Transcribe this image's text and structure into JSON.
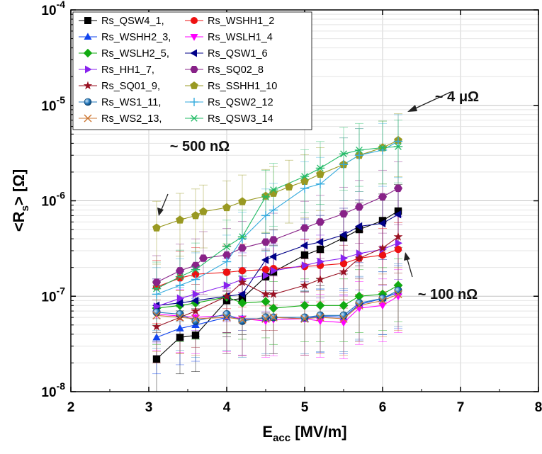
{
  "chart_data": {
    "type": "scatter",
    "xlabel": "E",
    "xlabel_sub": "acc",
    "xlabel_unit": " [MV/m]",
    "ylabel_pre": "<R",
    "ylabel_sub": "s",
    "ylabel_post": "> [Ω]",
    "xlim": [
      2,
      8
    ],
    "ylim": [
      1e-08,
      0.0001
    ],
    "yscale": "log",
    "grid": true,
    "legend_position": "top-left",
    "x_ticks": [
      "2",
      "3",
      "4",
      "5",
      "6",
      "7",
      "8"
    ],
    "y_ticks": [
      {
        "base": "10",
        "exp": "-8"
      },
      {
        "base": "10",
        "exp": "-7"
      },
      {
        "base": "10",
        "exp": "-6"
      },
      {
        "base": "10",
        "exp": "-5"
      },
      {
        "base": "10",
        "exp": "-4"
      }
    ],
    "annotations": [
      {
        "text": "~ 4 μΩ"
      },
      {
        "text": "~ 500 nΩ"
      },
      {
        "text": "~ 100 nΩ"
      }
    ],
    "series": [
      {
        "name": "Rs_QSW4_1,",
        "color": "#000000",
        "marker": "square",
        "x": [
          3.1,
          3.4,
          3.6,
          4.0,
          4.2,
          4.5,
          4.6,
          5.0,
          5.2,
          5.5,
          5.7,
          6.0,
          6.2
        ],
        "y": [
          2.2e-08,
          3.7e-08,
          3.9e-08,
          9e-08,
          9.5e-08,
          1.6e-07,
          1.8e-07,
          2.7e-07,
          3.1e-07,
          4.1e-07,
          5e-07,
          6.2e-07,
          7.8e-07
        ]
      },
      {
        "name": "Rs_WSHH1_2",
        "color": "#ee1111",
        "marker": "circle",
        "x": [
          3.1,
          3.4,
          3.6,
          4.0,
          4.2,
          4.5,
          4.6,
          5.0,
          5.2,
          5.5,
          5.7,
          6.0,
          6.2
        ],
        "y": [
          1.25e-07,
          1.55e-07,
          1.7e-07,
          1.78e-07,
          1.85e-07,
          1.9e-07,
          1.95e-07,
          2.05e-07,
          2.1e-07,
          2.2e-07,
          2.5e-07,
          2.7e-07,
          3.1e-07
        ]
      },
      {
        "name": "Rs_WSHH2_3,",
        "color": "#1144ee",
        "marker": "triangle-up",
        "x": [
          3.1,
          3.4,
          3.6,
          4.0,
          4.2,
          4.5,
          4.6,
          5.0,
          5.2,
          5.5,
          5.7,
          6.0,
          6.2
        ],
        "y": [
          3.7e-08,
          4.6e-08,
          5e-08,
          6e-08,
          5.8e-08,
          5.8e-08,
          6e-08,
          5.8e-08,
          6.2e-08,
          6e-08,
          8.2e-08,
          9.5e-08,
          1.1e-07
        ]
      },
      {
        "name": "Rs_WSLH1_4",
        "color": "#ff00ff",
        "marker": "triangle-down",
        "x": [
          3.1,
          3.4,
          3.6,
          4.0,
          4.2,
          4.5,
          4.6,
          5.0,
          5.2,
          5.5,
          5.7,
          6.0,
          6.2
        ],
        "y": [
          6.5e-08,
          6.2e-08,
          6e-08,
          6.3e-08,
          5.8e-08,
          5.5e-08,
          5.7e-08,
          5.8e-08,
          5.5e-08,
          5.3e-08,
          7.5e-08,
          8e-08,
          1e-07
        ]
      },
      {
        "name": "Rs_WSLH2_5,",
        "color": "#11aa11",
        "marker": "diamond",
        "x": [
          3.1,
          3.4,
          3.6,
          4.0,
          4.2,
          4.5,
          4.6,
          5.0,
          5.2,
          5.5,
          5.7,
          6.0,
          6.2
        ],
        "y": [
          7.5e-08,
          8e-08,
          8.5e-08,
          9.8e-08,
          8.5e-08,
          8.8e-08,
          7.5e-08,
          8e-08,
          8e-08,
          8e-08,
          1e-07,
          1.05e-07,
          1.3e-07
        ]
      },
      {
        "name": "Rs_QSW1_6",
        "color": "#000088",
        "marker": "triangle-left",
        "x": [
          3.1,
          3.4,
          3.6,
          4.0,
          4.2,
          4.5,
          4.6,
          5.0,
          5.2,
          5.5,
          5.7,
          6.0,
          6.2
        ],
        "y": [
          8e-08,
          8.5e-08,
          9e-08,
          1e-07,
          1.05e-07,
          2.4e-07,
          2.6e-07,
          3.4e-07,
          3.7e-07,
          4.4e-07,
          5.4e-07,
          5.8e-07,
          7.2e-07
        ]
      },
      {
        "name": "Rs_HH1_7,",
        "color": "#8822ee",
        "marker": "triangle-right",
        "x": [
          3.1,
          3.4,
          3.6,
          4.0,
          4.2,
          4.5,
          4.6,
          5.0,
          5.2,
          5.5,
          5.7,
          6.0,
          6.2
        ],
        "y": [
          7.8e-08,
          9.5e-08,
          1.05e-07,
          1.3e-07,
          1.5e-07,
          1.65e-07,
          1.85e-07,
          2.1e-07,
          2.3e-07,
          2.5e-07,
          2.8e-07,
          3.1e-07,
          3.6e-07
        ]
      },
      {
        "name": "Rs_SQ02_8",
        "color": "#882288",
        "marker": "hexagon",
        "x": [
          3.1,
          3.4,
          3.6,
          3.7,
          4.0,
          4.2,
          4.5,
          4.6,
          5.0,
          5.2,
          5.5,
          5.7,
          6.0,
          6.2
        ],
        "y": [
          1.4e-07,
          1.85e-07,
          2.1e-07,
          2.5e-07,
          2.7e-07,
          3.2e-07,
          3.7e-07,
          3.9e-07,
          5.2e-07,
          6e-07,
          7.3e-07,
          8.6e-07,
          1.1e-06,
          1.35e-06
        ]
      },
      {
        "name": "Rs_SQ01_9,",
        "color": "#991122",
        "marker": "star",
        "x": [
          3.1,
          3.4,
          3.6,
          4.0,
          4.2,
          4.5,
          4.6,
          5.0,
          5.2,
          5.5,
          5.7,
          6.0,
          6.2
        ],
        "y": [
          4.8e-08,
          6e-08,
          7e-08,
          1e-07,
          1.4e-07,
          1.05e-07,
          1.05e-07,
          1.3e-07,
          1.5e-07,
          1.8e-07,
          2.5e-07,
          3.2e-07,
          4.2e-07
        ]
      },
      {
        "name": "Rs_SSHH1_10",
        "color": "#999922",
        "marker": "pentagon",
        "x": [
          3.1,
          3.4,
          3.6,
          3.7,
          4.0,
          4.2,
          4.5,
          4.6,
          4.8,
          5.0,
          5.2,
          5.5,
          5.7,
          6.0,
          6.2
        ],
        "y": [
          5.2e-07,
          6.3e-07,
          7e-07,
          7.7e-07,
          8.5e-07,
          9.8e-07,
          1.12e-06,
          1.2e-06,
          1.4e-06,
          1.6e-06,
          1.9e-06,
          2.4e-06,
          3e-06,
          3.6e-06,
          4.3e-06
        ]
      },
      {
        "name": "Rs_WS1_11,",
        "color": "#2277bb",
        "marker": "sphere",
        "x": [
          3.1,
          3.4,
          3.6,
          4.0,
          4.2,
          4.5,
          4.6,
          5.0,
          5.2,
          5.5,
          5.7,
          6.0,
          6.2
        ],
        "y": [
          6.8e-08,
          6.5e-08,
          5.5e-08,
          6.5e-08,
          5.5e-08,
          6e-08,
          6e-08,
          6e-08,
          6.3e-08,
          6.3e-08,
          8.5e-08,
          9.5e-08,
          1.15e-07
        ]
      },
      {
        "name": "Rs_QSW2_12",
        "color": "#33aadd",
        "marker": "plus",
        "x": [
          3.1,
          3.4,
          3.6,
          4.0,
          4.2,
          4.5,
          4.6,
          5.0,
          5.2,
          5.5,
          5.7,
          6.0,
          6.2
        ],
        "y": [
          1.05e-07,
          1.3e-07,
          1.5e-07,
          2.3e-07,
          4e-07,
          7e-07,
          8e-07,
          1.35e-06,
          1.5e-06,
          2.4e-06,
          3e-06,
          3.4e-06,
          4.2e-06
        ]
      },
      {
        "name": "Rs_WS2_13,",
        "color": "#cc7733",
        "marker": "cross",
        "x": [
          3.1,
          3.4,
          3.6,
          4.0,
          4.2,
          4.5,
          4.6,
          5.0,
          5.2,
          5.5,
          5.7,
          6.0,
          6.2
        ],
        "y": [
          6.3e-08,
          6e-08,
          5.8e-08,
          6e-08,
          5.7e-08,
          5.8e-08,
          6e-08,
          5.8e-08,
          6e-08,
          5.8e-08,
          8e-08,
          9e-08,
          1.05e-07
        ]
      },
      {
        "name": "Rs_QSW3_14",
        "color": "#22bb66",
        "marker": "asterisk",
        "x": [
          3.1,
          3.4,
          3.6,
          4.0,
          4.2,
          4.5,
          4.6,
          5.0,
          5.2,
          5.5,
          5.7,
          6.0,
          6.2
        ],
        "y": [
          1.2e-07,
          1.6e-07,
          1.9e-07,
          3.3e-07,
          4.2e-07,
          1.1e-06,
          1.3e-06,
          1.8e-06,
          2.2e-06,
          3.1e-06,
          3.4e-06,
          3.6e-06,
          3.7e-06
        ]
      }
    ]
  }
}
